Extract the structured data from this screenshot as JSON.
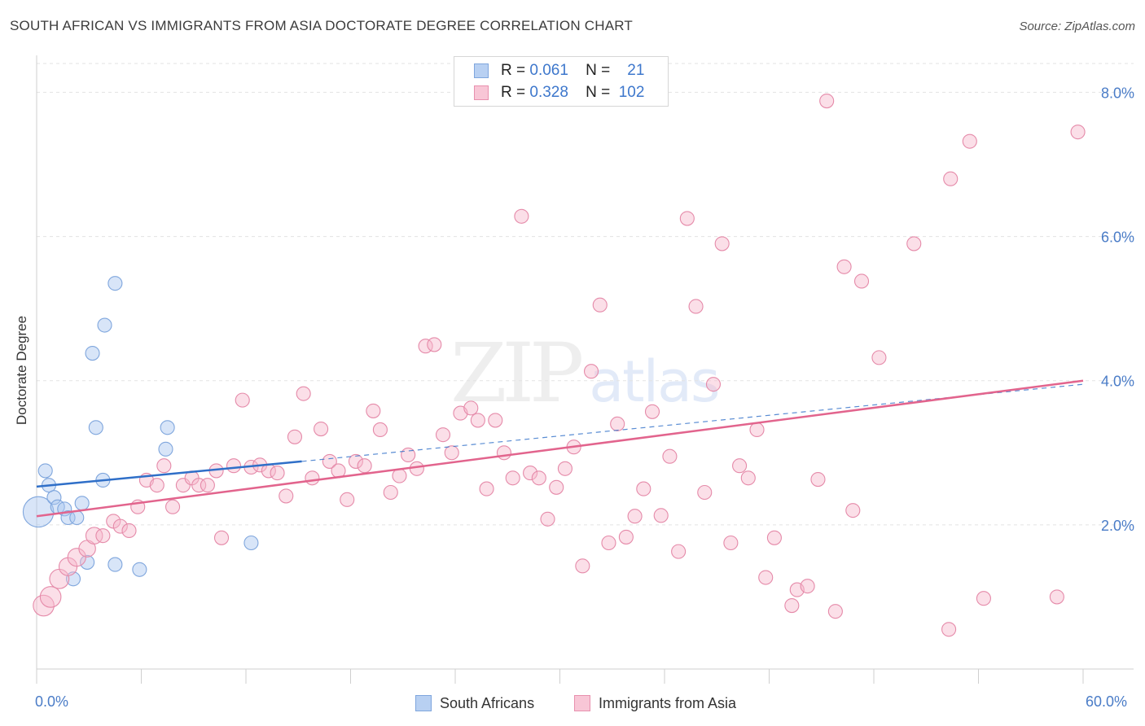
{
  "title": "SOUTH AFRICAN VS IMMIGRANTS FROM ASIA DOCTORATE DEGREE CORRELATION CHART",
  "source": "Source: ZipAtlas.com",
  "watermark": {
    "main": "ZIP",
    "sub": "atlas"
  },
  "stats": [
    {
      "r_label": "R =",
      "r_value": "0.061",
      "n_label": "N =",
      "n_value": "21",
      "color": "#b8d0f2",
      "border": "#7fa6dd"
    },
    {
      "r_label": "R =",
      "r_value": "0.328",
      "n_label": "N =",
      "n_value": "102",
      "color": "#f8c6d6",
      "border": "#e890ae"
    }
  ],
  "legend": [
    {
      "label": "South Africans",
      "color": "#b8d0f2",
      "border": "#7fa6dd"
    },
    {
      "label": "Immigrants from Asia",
      "color": "#f8c6d6",
      "border": "#e890ae"
    }
  ],
  "chart_data": {
    "type": "scatter",
    "title": "SOUTH AFRICAN VS IMMIGRANTS FROM ASIA DOCTORATE DEGREE CORRELATION CHART",
    "xlabel": "",
    "ylabel": "Doctorate Degree",
    "xlim": [
      0,
      60
    ],
    "ylim": [
      0,
      8.4
    ],
    "x_tick_labels": [
      "0.0%",
      "60.0%"
    ],
    "y_ticks": [
      2,
      4,
      6,
      8
    ],
    "y_tick_labels": [
      "2.0%",
      "4.0%",
      "6.0%",
      "8.0%"
    ],
    "grid": true,
    "series": [
      {
        "name": "South Africans",
        "color": "#a9c6ef",
        "stroke": "#7fa6dd",
        "trend_color": "#2f6fc8",
        "trend": {
          "x": [
            0,
            15.2
          ],
          "y": [
            2.53,
            2.88
          ]
        },
        "trend_dashed": {
          "x": [
            15.2,
            60
          ],
          "y": [
            2.88,
            3.95
          ]
        },
        "points": [
          {
            "x": 0.1,
            "y": 2.18,
            "s": 2.2
          },
          {
            "x": 0.5,
            "y": 2.75
          },
          {
            "x": 0.7,
            "y": 2.55
          },
          {
            "x": 1.0,
            "y": 2.38
          },
          {
            "x": 1.2,
            "y": 2.25
          },
          {
            "x": 1.6,
            "y": 2.22
          },
          {
            "x": 1.8,
            "y": 2.1
          },
          {
            "x": 2.3,
            "y": 2.1
          },
          {
            "x": 2.6,
            "y": 2.3
          },
          {
            "x": 2.9,
            "y": 1.48
          },
          {
            "x": 2.1,
            "y": 1.25
          },
          {
            "x": 3.2,
            "y": 4.38
          },
          {
            "x": 3.4,
            "y": 3.35
          },
          {
            "x": 3.8,
            "y": 2.62
          },
          {
            "x": 3.9,
            "y": 4.77
          },
          {
            "x": 4.5,
            "y": 5.35
          },
          {
            "x": 4.5,
            "y": 1.45
          },
          {
            "x": 5.9,
            "y": 1.38
          },
          {
            "x": 7.5,
            "y": 3.35
          },
          {
            "x": 7.4,
            "y": 3.05
          },
          {
            "x": 12.3,
            "y": 1.75
          }
        ]
      },
      {
        "name": "Immigrants from Asia",
        "color": "#f6b9cc",
        "stroke": "#e58aa9",
        "trend_color": "#e2648d",
        "trend": {
          "x": [
            0,
            60
          ],
          "y": [
            2.12,
            4.0
          ]
        },
        "points": [
          {
            "x": 0.4,
            "y": 0.88,
            "s": 1.5
          },
          {
            "x": 0.8,
            "y": 1.0,
            "s": 1.5
          },
          {
            "x": 1.3,
            "y": 1.25,
            "s": 1.4
          },
          {
            "x": 1.8,
            "y": 1.42,
            "s": 1.3
          },
          {
            "x": 2.3,
            "y": 1.55,
            "s": 1.3
          },
          {
            "x": 2.9,
            "y": 1.67,
            "s": 1.2
          },
          {
            "x": 3.3,
            "y": 1.85,
            "s": 1.2
          },
          {
            "x": 3.8,
            "y": 1.85
          },
          {
            "x": 4.4,
            "y": 2.05
          },
          {
            "x": 4.8,
            "y": 1.98
          },
          {
            "x": 5.3,
            "y": 1.92
          },
          {
            "x": 5.8,
            "y": 2.25
          },
          {
            "x": 6.3,
            "y": 2.62
          },
          {
            "x": 6.9,
            "y": 2.55
          },
          {
            "x": 7.3,
            "y": 2.82
          },
          {
            "x": 7.8,
            "y": 2.25
          },
          {
            "x": 8.4,
            "y": 2.55
          },
          {
            "x": 8.9,
            "y": 2.65
          },
          {
            "x": 9.3,
            "y": 2.55
          },
          {
            "x": 9.8,
            "y": 2.55
          },
          {
            "x": 10.3,
            "y": 2.75
          },
          {
            "x": 10.6,
            "y": 1.82
          },
          {
            "x": 11.3,
            "y": 2.82
          },
          {
            "x": 11.8,
            "y": 3.73
          },
          {
            "x": 12.3,
            "y": 2.8
          },
          {
            "x": 12.8,
            "y": 2.83
          },
          {
            "x": 13.3,
            "y": 2.75
          },
          {
            "x": 13.8,
            "y": 2.72
          },
          {
            "x": 14.3,
            "y": 2.4
          },
          {
            "x": 14.8,
            "y": 3.22
          },
          {
            "x": 15.3,
            "y": 3.82
          },
          {
            "x": 15.8,
            "y": 2.65
          },
          {
            "x": 16.3,
            "y": 3.33
          },
          {
            "x": 16.8,
            "y": 2.88
          },
          {
            "x": 17.3,
            "y": 2.75
          },
          {
            "x": 17.8,
            "y": 2.35
          },
          {
            "x": 18.3,
            "y": 2.88
          },
          {
            "x": 18.8,
            "y": 2.82
          },
          {
            "x": 19.3,
            "y": 3.58
          },
          {
            "x": 19.7,
            "y": 3.32
          },
          {
            "x": 20.3,
            "y": 2.45
          },
          {
            "x": 20.8,
            "y": 2.68
          },
          {
            "x": 21.3,
            "y": 2.97
          },
          {
            "x": 21.8,
            "y": 2.78
          },
          {
            "x": 22.3,
            "y": 4.48
          },
          {
            "x": 22.8,
            "y": 4.5
          },
          {
            "x": 23.3,
            "y": 3.25
          },
          {
            "x": 23.8,
            "y": 3.0
          },
          {
            "x": 24.3,
            "y": 3.55
          },
          {
            "x": 24.9,
            "y": 3.62
          },
          {
            "x": 25.3,
            "y": 3.45
          },
          {
            "x": 25.8,
            "y": 2.5
          },
          {
            "x": 26.3,
            "y": 3.45
          },
          {
            "x": 26.8,
            "y": 3.0
          },
          {
            "x": 27.3,
            "y": 2.65
          },
          {
            "x": 27.8,
            "y": 6.28
          },
          {
            "x": 28.3,
            "y": 2.72
          },
          {
            "x": 28.8,
            "y": 2.65
          },
          {
            "x": 29.3,
            "y": 2.08
          },
          {
            "x": 29.8,
            "y": 2.52
          },
          {
            "x": 30.3,
            "y": 2.78
          },
          {
            "x": 30.8,
            "y": 3.08
          },
          {
            "x": 31.3,
            "y": 1.43
          },
          {
            "x": 31.8,
            "y": 4.13
          },
          {
            "x": 32.3,
            "y": 5.05
          },
          {
            "x": 32.8,
            "y": 1.75
          },
          {
            "x": 33.3,
            "y": 3.4
          },
          {
            "x": 33.8,
            "y": 1.83
          },
          {
            "x": 34.3,
            "y": 2.12
          },
          {
            "x": 34.8,
            "y": 2.5
          },
          {
            "x": 35.3,
            "y": 3.57
          },
          {
            "x": 35.8,
            "y": 2.13
          },
          {
            "x": 36.3,
            "y": 2.95
          },
          {
            "x": 36.8,
            "y": 1.63
          },
          {
            "x": 37.3,
            "y": 6.25
          },
          {
            "x": 37.8,
            "y": 5.03
          },
          {
            "x": 38.3,
            "y": 2.45
          },
          {
            "x": 38.8,
            "y": 3.95
          },
          {
            "x": 39.3,
            "y": 5.9
          },
          {
            "x": 39.8,
            "y": 1.75
          },
          {
            "x": 40.3,
            "y": 2.82
          },
          {
            "x": 40.8,
            "y": 2.65
          },
          {
            "x": 41.3,
            "y": 3.32
          },
          {
            "x": 41.8,
            "y": 1.27
          },
          {
            "x": 42.3,
            "y": 1.82
          },
          {
            "x": 43.3,
            "y": 0.88
          },
          {
            "x": 43.6,
            "y": 1.1
          },
          {
            "x": 44.2,
            "y": 1.15
          },
          {
            "x": 44.8,
            "y": 2.63
          },
          {
            "x": 45.3,
            "y": 7.88
          },
          {
            "x": 45.8,
            "y": 0.8
          },
          {
            "x": 46.3,
            "y": 5.58
          },
          {
            "x": 46.8,
            "y": 2.2
          },
          {
            "x": 47.3,
            "y": 5.38
          },
          {
            "x": 48.3,
            "y": 4.32
          },
          {
            "x": 50.3,
            "y": 5.9
          },
          {
            "x": 52.3,
            "y": 0.55
          },
          {
            "x": 52.4,
            "y": 6.8
          },
          {
            "x": 53.5,
            "y": 7.32
          },
          {
            "x": 54.3,
            "y": 0.98
          },
          {
            "x": 58.5,
            "y": 1.0
          },
          {
            "x": 59.7,
            "y": 7.45
          }
        ]
      }
    ]
  }
}
